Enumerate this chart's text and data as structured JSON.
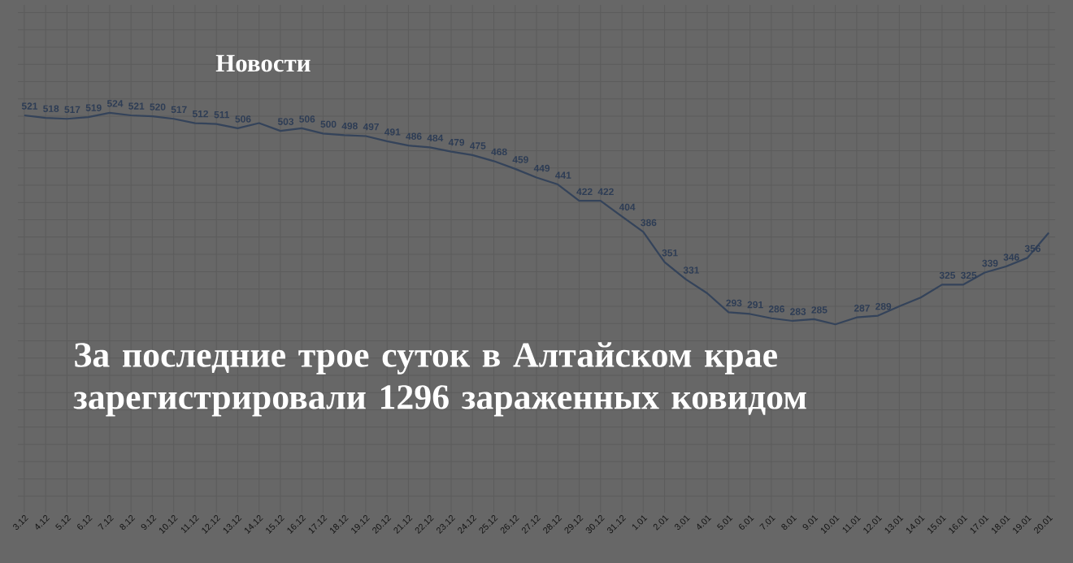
{
  "chart_data": {
    "type": "line",
    "title": "За последние трое суток в Алтайском крае зарегистрировали 1296 зараженных ковидом",
    "subtitle": "Новости",
    "categories": [
      "3.12",
      "4.12",
      "5.12",
      "6.12",
      "7.12",
      "8.12",
      "9.12",
      "10.12",
      "11.12",
      "12.12",
      "13.12",
      "14.12",
      "15.12",
      "16.12",
      "17.12",
      "18.12",
      "19.12",
      "20.12",
      "21.12",
      "22.12",
      "23.12",
      "24.12",
      "25.12",
      "26.12",
      "27.12",
      "28.12",
      "29.12",
      "30.12",
      "31.12",
      "1.01",
      "2.01",
      "3.01",
      "4.01",
      "5.01",
      "6.01",
      "7.01",
      "8.01",
      "9.01",
      "10.01",
      "11.01",
      "12.01",
      "13.01",
      "14.01",
      "15.01",
      "16.01",
      "17.01",
      "18.01",
      "19.01",
      "20.01"
    ],
    "values": [
      521,
      518,
      517,
      519,
      524,
      521,
      520,
      517,
      512,
      511,
      506,
      512,
      503,
      506,
      500,
      498,
      497,
      491,
      486,
      484,
      479,
      475,
      468,
      459,
      449,
      441,
      422,
      422,
      404,
      386,
      351,
      331,
      315,
      293,
      291,
      286,
      283,
      285,
      279,
      287,
      289,
      300,
      310,
      325,
      325,
      339,
      346,
      356,
      385
    ],
    "value_labels": [
      "521",
      "518",
      "517",
      "519",
      "524",
      "521",
      "520",
      "517",
      "512",
      "511",
      "506",
      null,
      "503",
      "506",
      "500",
      "498",
      "497",
      "491",
      "486",
      "484",
      "479",
      "475",
      "468",
      "459",
      "449",
      "441",
      "422",
      "422",
      "404",
      "386",
      "351",
      "331",
      null,
      "293",
      "291",
      "286",
      "283",
      "285",
      null,
      "287",
      "289",
      null,
      null,
      "325",
      "325",
      "339",
      "346",
      "356",
      null
    ],
    "color": "#34435a",
    "grid": true,
    "tick_labels": "x",
    "marker": "none",
    "line_style": "solid"
  }
}
